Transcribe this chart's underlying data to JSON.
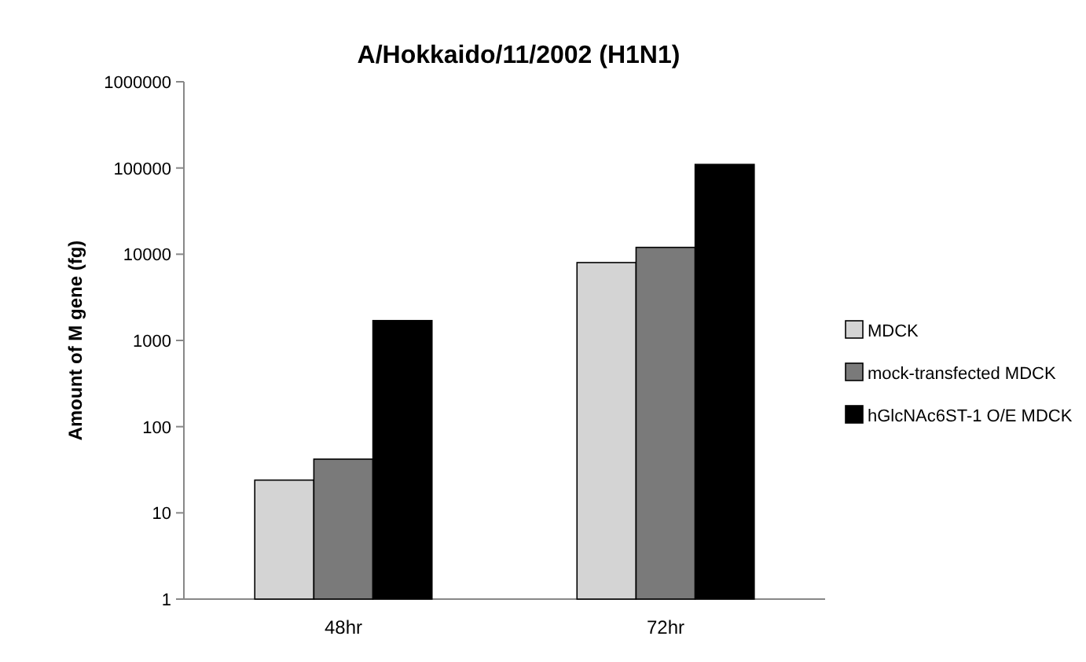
{
  "chart_data": {
    "type": "bar",
    "title": "A/Hokkaido/11/2002 (H1N1)",
    "ylabel": "Amount of M gene (fg)",
    "categories": [
      "48hr",
      "72hr"
    ],
    "series": [
      {
        "name": "MDCK",
        "color": "#d4d4d4",
        "values": [
          24,
          8000
        ]
      },
      {
        "name": "mock-transfected MDCK",
        "color": "#7a7a7a",
        "values": [
          42,
          12000
        ]
      },
      {
        "name": "hGlcNAc6ST-1 O/E MDCK",
        "color": "#000000",
        "values": [
          1700,
          110000
        ]
      }
    ],
    "log": "y",
    "ylim": [
      1,
      1000000
    ],
    "yticks": [
      1,
      10,
      100,
      1000,
      10000,
      100000,
      1000000
    ],
    "grid": false,
    "legend": "right"
  }
}
